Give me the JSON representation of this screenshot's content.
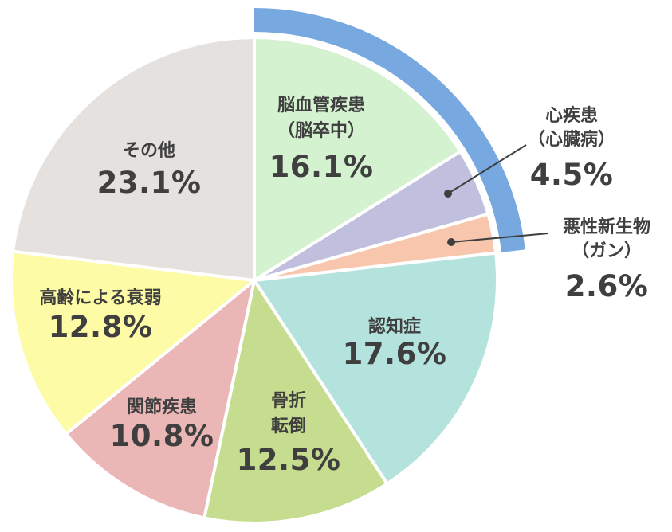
{
  "chart_data": {
    "type": "pie",
    "title": "",
    "slices": [
      {
        "label_lines": [
          "脳血管疾患",
          "（脳卒中）"
        ],
        "value": 16.1,
        "value_text": "16.1%",
        "color": "#d4f2d0",
        "label_inside": true
      },
      {
        "label_lines": [
          "心疾患",
          "（心臓病）"
        ],
        "value": 4.5,
        "value_text": "4.5%",
        "color": "#c0bfde",
        "label_inside": false
      },
      {
        "label_lines": [
          "悪性新生物",
          "（ガン）"
        ],
        "value": 2.6,
        "value_text": "2.6%",
        "color": "#f7c6ad",
        "label_inside": false
      },
      {
        "label_lines": [
          "認知症"
        ],
        "value": 17.6,
        "value_text": "17.6%",
        "color": "#b4e2dd",
        "label_inside": true
      },
      {
        "label_lines": [
          "骨折",
          "転倒"
        ],
        "value": 12.5,
        "value_text": "12.5%",
        "color": "#c6dd8f",
        "label_inside": true
      },
      {
        "label_lines": [
          "関節疾患"
        ],
        "value": 10.8,
        "value_text": "10.8%",
        "color": "#ebb7b6",
        "label_inside": true
      },
      {
        "label_lines": [
          "高齢による衰弱"
        ],
        "value": 12.8,
        "value_text": "12.8%",
        "color": "#fdfba5",
        "label_inside": true
      },
      {
        "label_lines": [
          "その他"
        ],
        "value": 23.1,
        "value_text": "23.1%",
        "color": "#e5e1de",
        "label_inside": true
      }
    ],
    "highlight_arc": {
      "covers_slices": [
        0,
        1,
        2
      ],
      "color": "#78a8e0"
    }
  }
}
